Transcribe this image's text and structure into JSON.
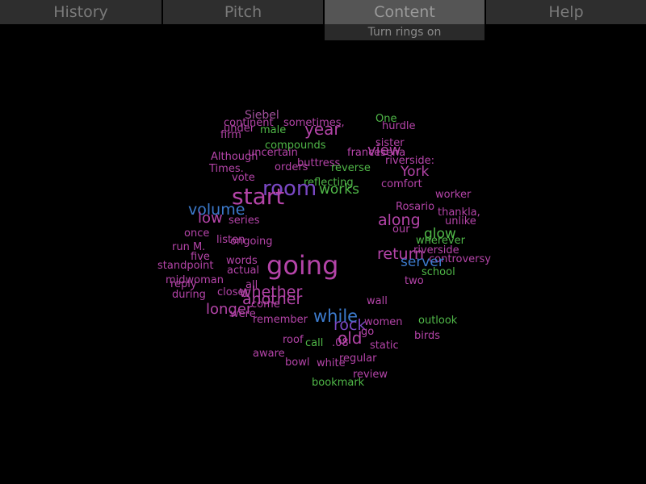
{
  "tabs": [
    {
      "label": "History",
      "active": false
    },
    {
      "label": "Pitch",
      "active": false
    },
    {
      "label": "Content",
      "active": true
    },
    {
      "label": "Help",
      "active": false
    }
  ],
  "content_menu": {
    "toggle_label": "Turn rings on"
  },
  "colors": {
    "magenta": "#b444a8",
    "green": "#50b848",
    "blue": "#3c7acc",
    "purple": "#7a48c4",
    "pink": "#a0509a"
  },
  "word_cloud": [
    {
      "text": "Siebel",
      "color": "pink"
    },
    {
      "text": "continent",
      "color": "magenta"
    },
    {
      "text": "sometimes,",
      "color": "magenta"
    },
    {
      "text": "One",
      "color": "green"
    },
    {
      "text": "under",
      "color": "magenta"
    },
    {
      "text": "male",
      "color": "green"
    },
    {
      "text": "year",
      "color": "magenta"
    },
    {
      "text": "hurdle",
      "color": "magenta"
    },
    {
      "text": "firm",
      "color": "magenta"
    },
    {
      "text": "sister",
      "color": "magenta"
    },
    {
      "text": "compounds",
      "color": "green"
    },
    {
      "text": "view",
      "color": "magenta"
    },
    {
      "text": "Although",
      "color": "magenta"
    },
    {
      "text": "uncertain",
      "color": "magenta"
    },
    {
      "text": "francesena",
      "color": "magenta"
    },
    {
      "text": "riverside:",
      "color": "magenta"
    },
    {
      "text": "Times.",
      "color": "magenta"
    },
    {
      "text": "orders",
      "color": "magenta"
    },
    {
      "text": "buttress",
      "color": "magenta"
    },
    {
      "text": "reverse",
      "color": "green"
    },
    {
      "text": "York",
      "color": "magenta"
    },
    {
      "text": "vote",
      "color": "magenta"
    },
    {
      "text": "reflecting",
      "color": "green"
    },
    {
      "text": "comfort",
      "color": "magenta"
    },
    {
      "text": "room",
      "color": "purple"
    },
    {
      "text": "works",
      "color": "green"
    },
    {
      "text": "start",
      "color": "magenta"
    },
    {
      "text": "worker",
      "color": "magenta"
    },
    {
      "text": "volume",
      "color": "blue"
    },
    {
      "text": "Rosario",
      "color": "magenta"
    },
    {
      "text": "thankla,",
      "color": "magenta"
    },
    {
      "text": "low",
      "color": "magenta"
    },
    {
      "text": "series",
      "color": "magenta"
    },
    {
      "text": "along",
      "color": "magenta"
    },
    {
      "text": "unlike",
      "color": "magenta"
    },
    {
      "text": "once",
      "color": "magenta"
    },
    {
      "text": "our",
      "color": "magenta"
    },
    {
      "text": "glow",
      "color": "green"
    },
    {
      "text": "listen",
      "color": "magenta"
    },
    {
      "text": "ongoing",
      "color": "magenta"
    },
    {
      "text": "wherever",
      "color": "green"
    },
    {
      "text": "run M.",
      "color": "magenta"
    },
    {
      "text": "riverside",
      "color": "magenta"
    },
    {
      "text": "five",
      "color": "magenta"
    },
    {
      "text": "return",
      "color": "magenta"
    },
    {
      "text": "controversy",
      "color": "magenta"
    },
    {
      "text": "words",
      "color": "magenta"
    },
    {
      "text": "server",
      "color": "blue"
    },
    {
      "text": "standpoint",
      "color": "magenta"
    },
    {
      "text": "going",
      "color": "magenta"
    },
    {
      "text": "actual",
      "color": "magenta"
    },
    {
      "text": "school",
      "color": "green"
    },
    {
      "text": "midwoman",
      "color": "magenta"
    },
    {
      "text": "reply",
      "color": "magenta"
    },
    {
      "text": "two",
      "color": "magenta"
    },
    {
      "text": "all",
      "color": "magenta"
    },
    {
      "text": "whether",
      "color": "magenta"
    },
    {
      "text": "during",
      "color": "magenta"
    },
    {
      "text": "closer",
      "color": "magenta"
    },
    {
      "text": "another",
      "color": "magenta"
    },
    {
      "text": "wall",
      "color": "magenta"
    },
    {
      "text": "longer",
      "color": "magenta"
    },
    {
      "text": "come",
      "color": "magenta"
    },
    {
      "text": "were",
      "color": "magenta"
    },
    {
      "text": "while",
      "color": "blue"
    },
    {
      "text": "remember",
      "color": "magenta"
    },
    {
      "text": "rock",
      "color": "purple"
    },
    {
      "text": "outlook",
      "color": "green"
    },
    {
      "text": "women",
      "color": "magenta"
    },
    {
      "text": "go",
      "color": "magenta"
    },
    {
      "text": "old",
      "color": "magenta"
    },
    {
      "text": "birds",
      "color": "magenta"
    },
    {
      "text": "roof",
      "color": "magenta"
    },
    {
      "text": "call",
      "color": "green"
    },
    {
      "text": ".08",
      "color": "magenta"
    },
    {
      "text": "static",
      "color": "magenta"
    },
    {
      "text": "aware",
      "color": "magenta"
    },
    {
      "text": "regular",
      "color": "magenta"
    },
    {
      "text": "bowl",
      "color": "magenta"
    },
    {
      "text": "white",
      "color": "magenta"
    },
    {
      "text": "review",
      "color": "magenta"
    },
    {
      "text": "bookmark",
      "color": "green"
    }
  ]
}
